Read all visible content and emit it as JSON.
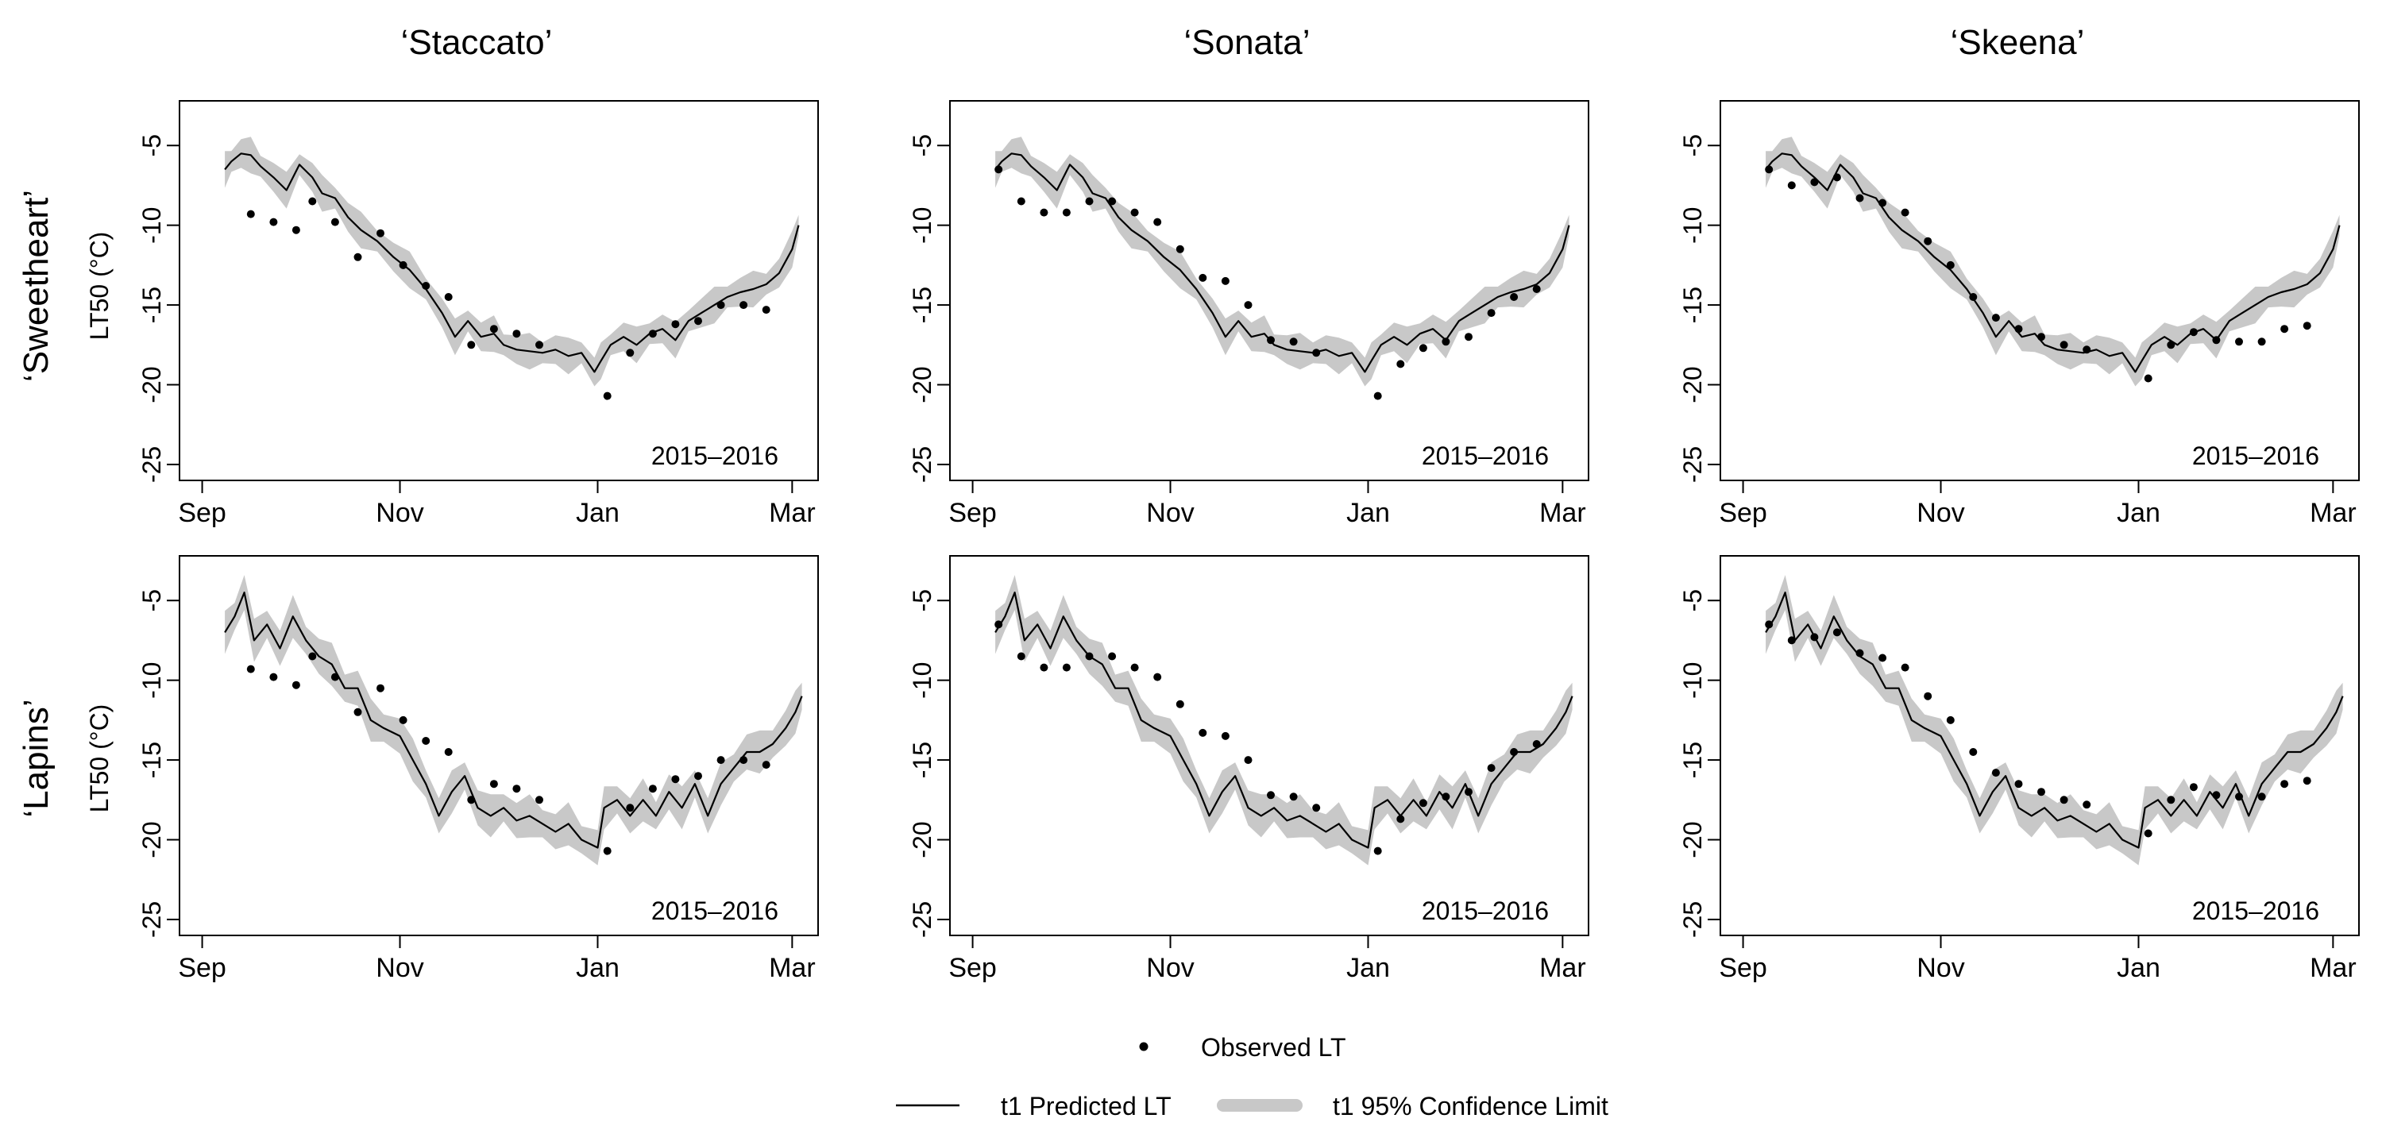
{
  "columns": [
    "‘Staccato’",
    "‘Sonata’",
    "‘Skeena’"
  ],
  "rows": [
    "‘Sweetheart’",
    "‘Lapins’"
  ],
  "ylabel": "LT50 (°C)",
  "season_label": "2015–2016",
  "x_ticks": [
    {
      "label": "Sep",
      "date": "2015-09-01"
    },
    {
      "label": "Nov",
      "date": "2015-11-01"
    },
    {
      "label": "Jan",
      "date": "2016-01-01"
    },
    {
      "label": "Mar",
      "date": "2016-03-01"
    }
  ],
  "y_ticks": [
    "-5",
    "-10",
    "-15",
    "-20",
    "-25"
  ],
  "legend": {
    "observed": "Observed LT",
    "predicted": "t1 Predicted LT",
    "ci": "t1 95% Confidence Limit"
  },
  "colors": {
    "line": "#000000",
    "band": "#c8c8c8",
    "point": "#000000",
    "axis": "#000000"
  },
  "chart_data": {
    "type": "line",
    "layout": "2x3 small multiples",
    "xlim": [
      "2015-08-25",
      "2016-03-09"
    ],
    "ylim": [
      -26,
      -2.2
    ],
    "grid": false,
    "legend_position": "bottom-center",
    "series_names": [
      "t1 Predicted LT",
      "t1 95% Confidence Limit",
      "Observed LT"
    ],
    "predicted": {
      "Sweetheart": {
        "x": [
          "2015-09-08",
          "2015-09-10",
          "2015-09-13",
          "2015-09-16",
          "2015-09-19",
          "2015-09-23",
          "2015-09-27",
          "2015-10-01",
          "2015-10-05",
          "2015-10-08",
          "2015-10-12",
          "2015-10-16",
          "2015-10-20",
          "2015-10-25",
          "2015-10-30",
          "2015-11-04",
          "2015-11-09",
          "2015-11-14",
          "2015-11-18",
          "2015-11-22",
          "2015-11-26",
          "2015-11-30",
          "2015-12-03",
          "2015-12-07",
          "2015-12-11",
          "2015-12-15",
          "2015-12-19",
          "2015-12-23",
          "2015-12-27",
          "2015-12-31",
          "2016-01-02",
          "2016-01-05",
          "2016-01-09",
          "2016-01-13",
          "2016-01-17",
          "2016-01-21",
          "2016-01-25",
          "2016-01-29",
          "2016-02-02",
          "2016-02-06",
          "2016-02-10",
          "2016-02-14",
          "2016-02-18",
          "2016-02-22",
          "2016-02-26",
          "2016-03-01",
          "2016-03-03"
        ],
        "y": [
          -6.5,
          -6.0,
          -5.5,
          -5.6,
          -6.3,
          -7.0,
          -7.8,
          -6.2,
          -7.0,
          -8.0,
          -8.3,
          -9.5,
          -10.3,
          -11.0,
          -12.0,
          -12.8,
          -14.0,
          -15.5,
          -17.0,
          -16.0,
          -17.0,
          -16.8,
          -17.5,
          -17.8,
          -17.9,
          -18.0,
          -17.8,
          -18.2,
          -18.0,
          -19.2,
          -18.5,
          -17.5,
          -17.0,
          -17.5,
          -16.8,
          -16.5,
          -17.2,
          -16.0,
          -15.5,
          -15.0,
          -14.5,
          -14.2,
          -14.0,
          -13.7,
          -13.0,
          -11.5,
          -10.0
        ],
        "ci_halfwidth": 0.8
      },
      "Lapins": {
        "x": [
          "2015-09-08",
          "2015-09-11",
          "2015-09-14",
          "2015-09-17",
          "2015-09-21",
          "2015-09-25",
          "2015-09-29",
          "2015-10-03",
          "2015-10-07",
          "2015-10-11",
          "2015-10-15",
          "2015-10-19",
          "2015-10-23",
          "2015-10-27",
          "2015-11-01",
          "2015-11-05",
          "2015-11-09",
          "2015-11-13",
          "2015-11-17",
          "2015-11-21",
          "2015-11-25",
          "2015-11-29",
          "2015-12-03",
          "2015-12-07",
          "2015-12-11",
          "2015-12-15",
          "2015-12-19",
          "2015-12-23",
          "2015-12-27",
          "2016-01-01",
          "2016-01-03",
          "2016-01-07",
          "2016-01-11",
          "2016-01-15",
          "2016-01-19",
          "2016-01-23",
          "2016-01-27",
          "2016-01-31",
          "2016-02-04",
          "2016-02-08",
          "2016-02-12",
          "2016-02-16",
          "2016-02-20",
          "2016-02-24",
          "2016-02-28",
          "2016-03-02",
          "2016-03-04"
        ],
        "y": [
          -7.0,
          -6.0,
          -4.5,
          -7.5,
          -6.5,
          -8.0,
          -6.0,
          -7.5,
          -8.5,
          -9.0,
          -10.5,
          -10.5,
          -12.5,
          -13.0,
          -13.5,
          -15.0,
          -16.5,
          -18.5,
          -17.0,
          -16.0,
          -18.0,
          -18.5,
          -18.0,
          -18.8,
          -18.5,
          -19.0,
          -19.5,
          -19.0,
          -20.0,
          -20.5,
          -18.0,
          -17.5,
          -18.5,
          -17.5,
          -18.5,
          -17.0,
          -18.0,
          -16.5,
          -18.5,
          -16.5,
          -15.5,
          -14.5,
          -14.5,
          -14.0,
          -13.0,
          -12.0,
          -11.0
        ],
        "ci_halfwidth": 1.0
      }
    },
    "observed": {
      "Staccato": {
        "Sweetheart": {
          "x": [
            "2015-09-16",
            "2015-09-23",
            "2015-09-30",
            "2015-10-05",
            "2015-10-12",
            "2015-10-19",
            "2015-10-26",
            "2015-11-02",
            "2015-11-09",
            "2015-11-16",
            "2015-11-23",
            "2015-11-30",
            "2015-12-07",
            "2015-12-14",
            "2016-01-04",
            "2016-01-11",
            "2016-01-18",
            "2016-01-25",
            "2016-02-01",
            "2016-02-08",
            "2016-02-15",
            "2016-02-22"
          ],
          "y": [
            -9.3,
            -9.8,
            -10.3,
            -8.5,
            -9.8,
            -12.0,
            -10.5,
            -12.5,
            -13.8,
            -14.5,
            -17.5,
            -16.5,
            -16.8,
            -17.5,
            -20.7,
            -18.0,
            -16.8,
            -16.2,
            -16.0,
            -15.0,
            -15.0,
            -15.3
          ]
        },
        "Lapins": {
          "x": [
            "2015-09-16",
            "2015-09-23",
            "2015-09-30",
            "2015-10-05",
            "2015-10-12",
            "2015-10-19",
            "2015-10-26",
            "2015-11-02",
            "2015-11-09",
            "2015-11-16",
            "2015-11-23",
            "2015-11-30",
            "2015-12-07",
            "2015-12-14",
            "2016-01-04",
            "2016-01-11",
            "2016-01-18",
            "2016-01-25",
            "2016-02-01",
            "2016-02-08",
            "2016-02-15",
            "2016-02-22"
          ],
          "y": [
            -9.3,
            -9.8,
            -10.3,
            -8.5,
            -9.8,
            -12.0,
            -10.5,
            -12.5,
            -13.8,
            -14.5,
            -17.5,
            -16.5,
            -16.8,
            -17.5,
            -20.7,
            -18.0,
            -16.8,
            -16.2,
            -16.0,
            -15.0,
            -15.0,
            -15.3
          ]
        }
      },
      "Sonata": {
        "Sweetheart": {
          "x": [
            "2015-09-09",
            "2015-09-16",
            "2015-09-23",
            "2015-09-30",
            "2015-10-07",
            "2015-10-14",
            "2015-10-21",
            "2015-10-28",
            "2015-11-04",
            "2015-11-11",
            "2015-11-18",
            "2015-11-25",
            "2015-12-02",
            "2015-12-09",
            "2015-12-16",
            "2016-01-04",
            "2016-01-11",
            "2016-01-18",
            "2016-01-25",
            "2016-02-01",
            "2016-02-08",
            "2016-02-15",
            "2016-02-22"
          ],
          "y": [
            -6.5,
            -8.5,
            -9.2,
            -9.2,
            -8.5,
            -8.5,
            -9.2,
            -9.8,
            -11.5,
            -13.3,
            -13.5,
            -15.0,
            -17.2,
            -17.3,
            -18.0,
            -20.7,
            -18.7,
            -17.7,
            -17.3,
            -17.0,
            -15.5,
            -14.5,
            -14.0
          ]
        },
        "Lapins": {
          "x": [
            "2015-09-09",
            "2015-09-16",
            "2015-09-23",
            "2015-09-30",
            "2015-10-07",
            "2015-10-14",
            "2015-10-21",
            "2015-10-28",
            "2015-11-04",
            "2015-11-11",
            "2015-11-18",
            "2015-11-25",
            "2015-12-02",
            "2015-12-09",
            "2015-12-16",
            "2016-01-04",
            "2016-01-11",
            "2016-01-18",
            "2016-01-25",
            "2016-02-01",
            "2016-02-08",
            "2016-02-15",
            "2016-02-22"
          ],
          "y": [
            -6.5,
            -8.5,
            -9.2,
            -9.2,
            -8.5,
            -8.5,
            -9.2,
            -9.8,
            -11.5,
            -13.3,
            -13.5,
            -15.0,
            -17.2,
            -17.3,
            -18.0,
            -20.7,
            -18.7,
            -17.7,
            -17.3,
            -17.0,
            -15.5,
            -14.5,
            -14.0
          ]
        }
      },
      "Skeena": {
        "Sweetheart": {
          "x": [
            "2015-09-09",
            "2015-09-16",
            "2015-09-23",
            "2015-09-30",
            "2015-10-07",
            "2015-10-14",
            "2015-10-21",
            "2015-10-28",
            "2015-11-04",
            "2015-11-11",
            "2015-11-18",
            "2015-11-25",
            "2015-12-02",
            "2015-12-09",
            "2015-12-16",
            "2016-01-04",
            "2016-01-11",
            "2016-01-18",
            "2016-01-25",
            "2016-02-01",
            "2016-02-08",
            "2016-02-15",
            "2016-02-22"
          ],
          "y": [
            -6.5,
            -7.5,
            -7.3,
            -7.0,
            -8.3,
            -8.6,
            -9.2,
            -11.0,
            -12.5,
            -14.5,
            -15.8,
            -16.5,
            -17.0,
            -17.5,
            -17.8,
            -19.6,
            -17.5,
            -16.7,
            -17.2,
            -17.3,
            -17.3,
            -16.5,
            -16.3
          ]
        },
        "Lapins": {
          "x": [
            "2015-09-09",
            "2015-09-16",
            "2015-09-23",
            "2015-09-30",
            "2015-10-07",
            "2015-10-14",
            "2015-10-21",
            "2015-10-28",
            "2015-11-04",
            "2015-11-11",
            "2015-11-18",
            "2015-11-25",
            "2015-12-02",
            "2015-12-09",
            "2015-12-16",
            "2016-01-04",
            "2016-01-11",
            "2016-01-18",
            "2016-01-25",
            "2016-02-01",
            "2016-02-08",
            "2016-02-15",
            "2016-02-22"
          ],
          "y": [
            -6.5,
            -7.5,
            -7.3,
            -7.0,
            -8.3,
            -8.6,
            -9.2,
            -11.0,
            -12.5,
            -14.5,
            -15.8,
            -16.5,
            -17.0,
            -17.5,
            -17.8,
            -19.6,
            -17.5,
            -16.7,
            -17.2,
            -17.3,
            -17.3,
            -16.5,
            -16.3
          ]
        }
      }
    }
  }
}
